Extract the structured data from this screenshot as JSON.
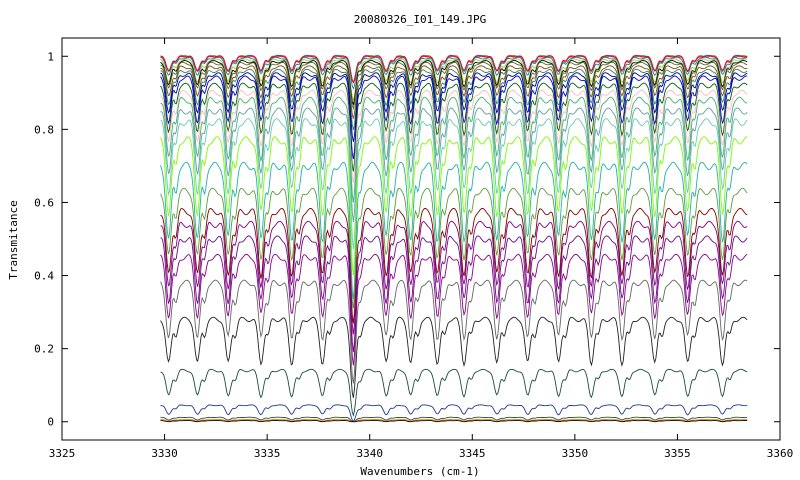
{
  "chart_data": {
    "type": "line",
    "title": "20080326_I01_149.JPG",
    "xlabel": "Wavenumbers (cm-1)",
    "ylabel": "Transmitance",
    "xlim": [
      3325,
      3360
    ],
    "ylim": [
      -0.05,
      1.05
    ],
    "xticks": [
      3325,
      3330,
      3335,
      3340,
      3345,
      3350,
      3355,
      3360
    ],
    "xtick_labels": [
      "3325",
      "3330",
      "3335",
      "3340",
      "3345",
      "3350",
      "3355",
      "3360"
    ],
    "yticks": [
      0,
      0.2,
      0.4,
      0.6,
      0.8,
      1
    ],
    "ytick_labels": [
      "0",
      "0.2",
      "0.4",
      "0.6",
      "0.8",
      "1"
    ],
    "grid": false,
    "legend": "none",
    "x_range_data": [
      3329.8,
      3358.4
    ],
    "line_positions": [
      3330.2,
      3331.6,
      3333.1,
      3334.7,
      3336.2,
      3337.7,
      3339.2,
      3340.8,
      3342.0,
      3343.3,
      3344.6,
      3346.2,
      3347.7,
      3349.2,
      3350.8,
      3352.3,
      3353.9,
      3355.5,
      3357.2
    ],
    "series": [
      {
        "color": "#2e8b57",
        "values": [
          1.0,
          0.96
        ]
      },
      {
        "color": "#ff7f0e",
        "values": [
          1.0,
          0.96
        ]
      },
      {
        "color": "#8a2be2",
        "values": [
          1.0,
          0.96
        ]
      },
      {
        "color": "#ff0000",
        "values": [
          1.0,
          0.96
        ]
      },
      {
        "color": "#1f77b4",
        "values": [
          0.995,
          0.95
        ]
      },
      {
        "color": "#9acd32",
        "values": [
          0.99,
          0.93
        ]
      },
      {
        "color": "#000000",
        "values": [
          0.985,
          0.92
        ]
      },
      {
        "color": "#556b2f",
        "values": [
          0.98,
          0.91
        ]
      },
      {
        "color": "#8b4513",
        "values": [
          0.97,
          0.89
        ]
      },
      {
        "color": "#2e8b57",
        "values": [
          0.96,
          0.87
        ]
      },
      {
        "color": "#00008b",
        "values": [
          0.95,
          0.85
        ]
      },
      {
        "color": "#0000cd",
        "values": [
          0.94,
          0.82
        ]
      },
      {
        "color": "#006400",
        "values": [
          0.92,
          0.79
        ]
      },
      {
        "color": "#ffb6c1",
        "values": [
          0.9,
          0.76
        ]
      },
      {
        "color": "#3cb371",
        "values": [
          0.88,
          0.72
        ]
      },
      {
        "color": "#5f9ea0",
        "values": [
          0.85,
          0.68
        ]
      },
      {
        "color": "#66cdaa",
        "values": [
          0.82,
          0.63
        ]
      },
      {
        "color": "#7cfc00",
        "values": [
          0.77,
          0.57
        ]
      },
      {
        "color": "#20b2aa",
        "values": [
          0.7,
          0.5
        ]
      },
      {
        "color": "#5c9e3a",
        "values": [
          0.63,
          0.45
        ]
      },
      {
        "color": "#800000",
        "values": [
          0.575,
          0.4
        ]
      },
      {
        "color": "#800080",
        "values": [
          0.54,
          0.37
        ]
      },
      {
        "color": "#6a0d83",
        "values": [
          0.5,
          0.33
        ]
      },
      {
        "color": "#8b008b",
        "values": [
          0.45,
          0.29
        ]
      },
      {
        "color": "#666666",
        "values": [
          0.38,
          0.23
        ]
      },
      {
        "color": "#222222",
        "values": [
          0.28,
          0.16
        ]
      },
      {
        "color": "#1b4d3e",
        "values": [
          0.14,
          0.07
        ]
      },
      {
        "color": "#1f3a93",
        "values": [
          0.045,
          0.02
        ]
      },
      {
        "color": "#2f4f4f",
        "values": [
          0.012,
          0.005
        ]
      },
      {
        "color": "#ff8c00",
        "values": [
          0.006,
          0.002
        ]
      },
      {
        "color": "#000000",
        "values": [
          0.003,
          0.0
        ]
      }
    ]
  }
}
